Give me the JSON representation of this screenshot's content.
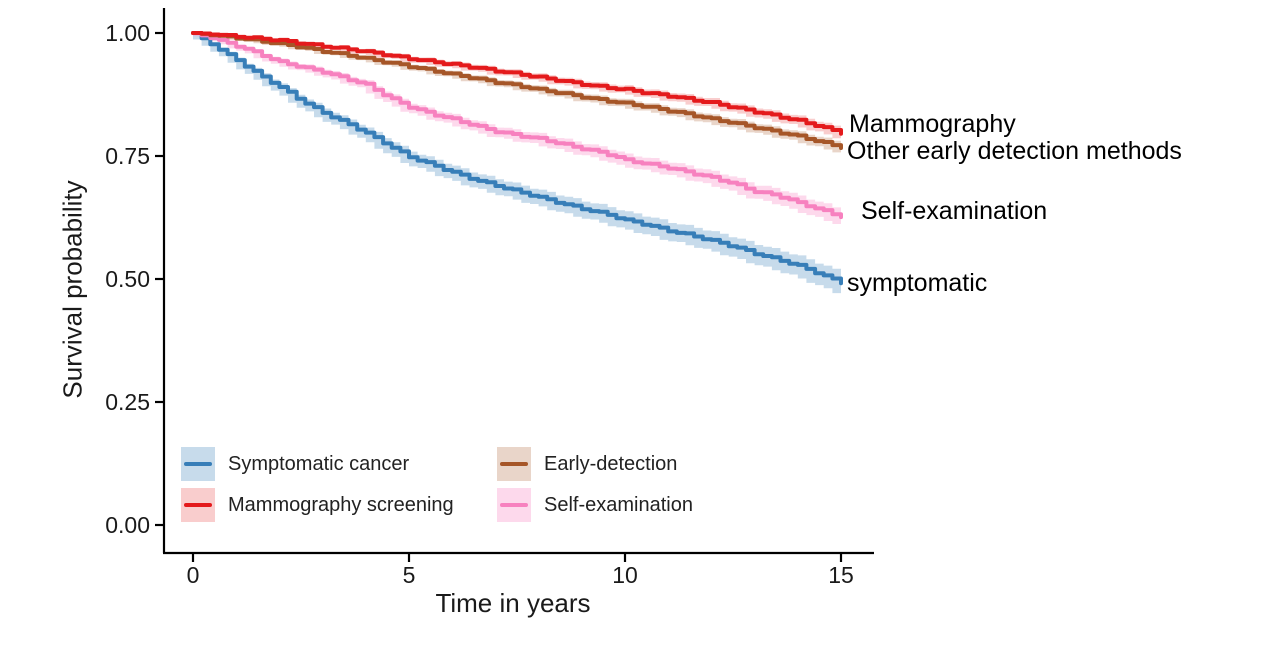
{
  "chart_data": {
    "type": "line",
    "subtype": "kaplan-meier-survival",
    "title": "",
    "xlabel": "Time in years",
    "ylabel": "Survival probability",
    "xlim": [
      0,
      15
    ],
    "ylim": [
      0.0,
      1.0
    ],
    "grid": false,
    "legend_position": "inside-bottom-left",
    "x_ticks": [
      0,
      5,
      10,
      15
    ],
    "x_tick_labels": [
      "0",
      "5",
      "10",
      "15"
    ],
    "y_ticks": [
      0.0,
      0.25,
      0.5,
      0.75,
      1.0
    ],
    "y_tick_labels": [
      "0.00",
      "0.25",
      "0.50",
      "0.75",
      "1.00"
    ],
    "x_step": 0.5,
    "series": [
      {
        "name": "Symptomatic cancer",
        "annotation": "symptomatic",
        "color": "#377EB8",
        "band_color": "rgba(55,126,184,0.28)",
        "ci_end": 0.02,
        "end_value": 0.493,
        "values": [
          1.0,
          0.972,
          0.945,
          0.916,
          0.89,
          0.862,
          0.838,
          0.818,
          0.797,
          0.772,
          0.748,
          0.733,
          0.717,
          0.702,
          0.69,
          0.678,
          0.666,
          0.654,
          0.643,
          0.633,
          0.62,
          0.61,
          0.598,
          0.589,
          0.578,
          0.566,
          0.552,
          0.54,
          0.527,
          0.51,
          0.493
        ]
      },
      {
        "name": "Mammography screening",
        "annotation": "Mammography",
        "color": "#E41A1C",
        "band_color": "rgba(228,26,28,0.22)",
        "ci_end": 0.009,
        "end_value": 0.797,
        "values": [
          1.0,
          0.997,
          0.993,
          0.989,
          0.985,
          0.979,
          0.973,
          0.968,
          0.962,
          0.955,
          0.948,
          0.942,
          0.936,
          0.93,
          0.923,
          0.917,
          0.91,
          0.903,
          0.896,
          0.89,
          0.885,
          0.878,
          0.872,
          0.865,
          0.858,
          0.849,
          0.84,
          0.831,
          0.822,
          0.81,
          0.797
        ]
      },
      {
        "name": "Early-detection",
        "annotation": "Other early detection methods",
        "color": "#A65628",
        "band_color": "rgba(166,86,40,0.25)",
        "ci_end": 0.009,
        "end_value": 0.768,
        "values": [
          1.0,
          0.995,
          0.99,
          0.984,
          0.978,
          0.971,
          0.963,
          0.956,
          0.948,
          0.94,
          0.932,
          0.924,
          0.916,
          0.908,
          0.9,
          0.893,
          0.885,
          0.878,
          0.87,
          0.863,
          0.857,
          0.85,
          0.842,
          0.834,
          0.825,
          0.817,
          0.808,
          0.799,
          0.79,
          0.779,
          0.768
        ]
      },
      {
        "name": "Self-examination",
        "annotation": "Self-examination",
        "color": "#F781BF",
        "band_color": "rgba(247,129,191,0.30)",
        "ci_end": 0.014,
        "end_value": 0.627,
        "values": [
          1.0,
          0.988,
          0.974,
          0.958,
          0.941,
          0.931,
          0.921,
          0.908,
          0.895,
          0.87,
          0.85,
          0.836,
          0.825,
          0.812,
          0.8,
          0.792,
          0.785,
          0.775,
          0.765,
          0.756,
          0.742,
          0.734,
          0.726,
          0.716,
          0.706,
          0.694,
          0.678,
          0.67,
          0.655,
          0.641,
          0.627
        ]
      }
    ]
  }
}
